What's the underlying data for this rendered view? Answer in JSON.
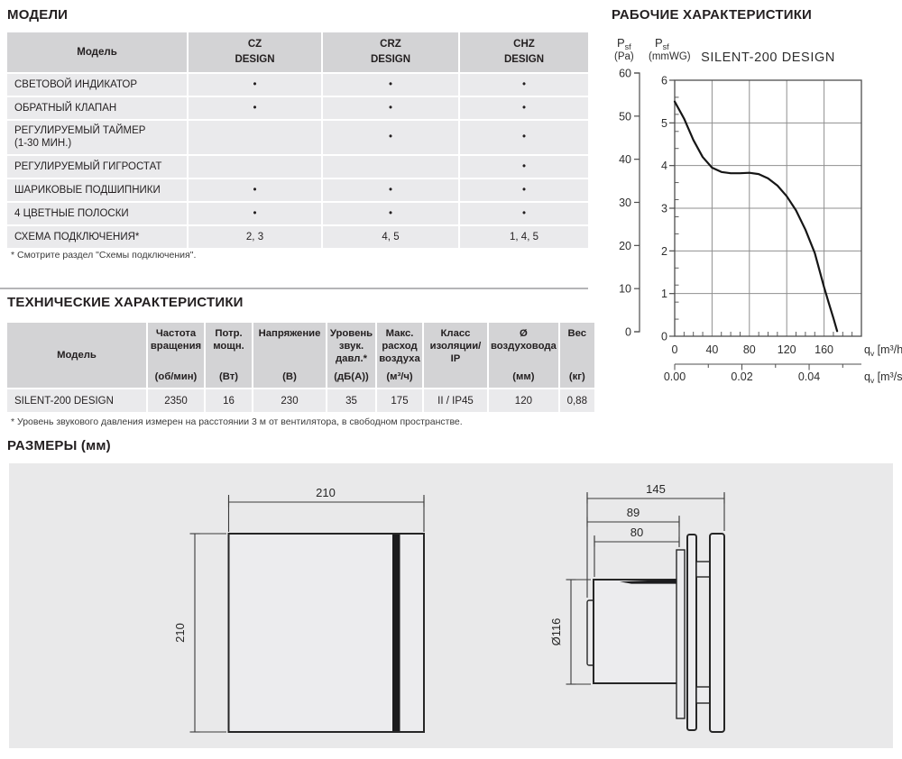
{
  "sections": {
    "models": "МОДЕЛИ",
    "performance": "РАБОЧИЕ ХАРАКТЕРИСТИКИ",
    "technical": "ТЕХНИЧЕСКИЕ ХАРАКТЕРИСТИКИ",
    "dimensions": "РАЗМЕРЫ (мм)"
  },
  "models_table": {
    "header": {
      "model_label": "Модель",
      "columns": [
        {
          "name": "CZ",
          "series": "DESIGN"
        },
        {
          "name": "CRZ",
          "series": "DESIGN"
        },
        {
          "name": "CHZ",
          "series": "DESIGN"
        }
      ]
    },
    "rows": [
      {
        "label_lines": [
          "СВЕТОВОЙ ИНДИКАТОР"
        ],
        "values": [
          "•",
          "•",
          "•"
        ]
      },
      {
        "label_lines": [
          "ОБРАТНЫЙ КЛАПАН"
        ],
        "values": [
          "•",
          "•",
          "•"
        ]
      },
      {
        "label_lines": [
          "РЕГУЛИРУЕМЫЙ ТАЙМЕР",
          "(1-30 МИН.)"
        ],
        "values": [
          "",
          "•",
          "•"
        ]
      },
      {
        "label_lines": [
          "РЕГУЛИРУЕМЫЙ ГИГРОСТАТ"
        ],
        "values": [
          "",
          "",
          "•"
        ]
      },
      {
        "label_lines": [
          "ШАРИКОВЫЕ ПОДШИПНИКИ"
        ],
        "values": [
          "•",
          "•",
          "•"
        ]
      },
      {
        "label_lines": [
          "4 ЦВЕТНЫЕ ПОЛОСКИ"
        ],
        "values": [
          "•",
          "•",
          "•"
        ]
      },
      {
        "label_lines": [
          "СХЕМА ПОДКЛЮЧЕНИЯ*"
        ],
        "values": [
          "2, 3",
          "4, 5",
          "1, 4, 5"
        ]
      }
    ],
    "footnote": "* Смотрите раздел \"Схемы подключения\"."
  },
  "tech_table": {
    "headers": [
      {
        "label": "Модель",
        "unit": "",
        "center": true
      },
      {
        "label": "Частота вращения",
        "unit": "(об/мин)"
      },
      {
        "label": "Потр. мощн.",
        "unit": "(Вт)"
      },
      {
        "label": "Напряжение",
        "unit": "(В)"
      },
      {
        "label": "Уровень звук. давл.*",
        "unit": "(дБ(А))"
      },
      {
        "label": "Макс. расход воздуха",
        "unit": "(м³/ч)"
      },
      {
        "label": "Класс изоляции/ IP",
        "unit": ""
      },
      {
        "label": "Ø воздуховода",
        "unit": "(мм)"
      },
      {
        "label": "Вес",
        "unit": "(кг)"
      }
    ],
    "row": [
      "SILENT-200 DESIGN",
      "2350",
      "16",
      "230",
      "35",
      "175",
      "II / IP45",
      "120",
      "0,88"
    ],
    "footnote": "* Уровень звукового давления измерен на расстоянии 3 м от вентилятора, в свободном пространстве."
  },
  "chart_data": {
    "type": "line",
    "title": "SILENT-200 DESIGN",
    "x_axis_m3h": {
      "name_main": "q",
      "name_sub": "v",
      "unit": "[m³/h]",
      "ticks": [
        0,
        40,
        80,
        120,
        160
      ],
      "max": 200
    },
    "x_axis_m3s": {
      "name_main": "q",
      "name_sub": "v",
      "unit": "[m³/s]",
      "ticks": [
        "0.00",
        "0.02",
        "0.04"
      ]
    },
    "y_axis_pa": {
      "name_main": "P",
      "name_sub": "sf",
      "unit": "(Pa)",
      "ticks": [
        0,
        10,
        20,
        30,
        40,
        50,
        60
      ],
      "max": 60
    },
    "y_axis_mmwg": {
      "name_main": "P",
      "name_sub": "sf",
      "unit": "(mmWG)",
      "ticks": [
        0,
        1,
        2,
        3,
        4,
        5,
        6
      ],
      "max": 6
    },
    "grid": true,
    "series": [
      {
        "name": "SILENT-200 DESIGN",
        "units": "[qv in m³/h, Psf in mmWG]",
        "points": [
          [
            0,
            5.5
          ],
          [
            10,
            5.1
          ],
          [
            20,
            4.6
          ],
          [
            30,
            4.2
          ],
          [
            40,
            3.95
          ],
          [
            50,
            3.85
          ],
          [
            60,
            3.82
          ],
          [
            70,
            3.82
          ],
          [
            80,
            3.83
          ],
          [
            90,
            3.8
          ],
          [
            100,
            3.7
          ],
          [
            110,
            3.53
          ],
          [
            120,
            3.28
          ],
          [
            130,
            2.95
          ],
          [
            140,
            2.5
          ],
          [
            150,
            1.95
          ],
          [
            160,
            1.15
          ],
          [
            165,
            0.78
          ],
          [
            170,
            0.42
          ],
          [
            174,
            0.12
          ]
        ]
      }
    ]
  },
  "dimensions": {
    "front_view": {
      "width": "210",
      "height": "210"
    },
    "side_view": {
      "depth": "145",
      "body_with_flange": "89",
      "duct_length": "80",
      "duct_diameter": "Ø116"
    }
  },
  "colors": {
    "table_header_bg": "#d3d3d5",
    "table_cell_bg": "#eaeaec",
    "panel_bg": "#e9e9ea",
    "text": "#231f20",
    "grid_line": "#8f8f8f",
    "curve": "#161616"
  }
}
